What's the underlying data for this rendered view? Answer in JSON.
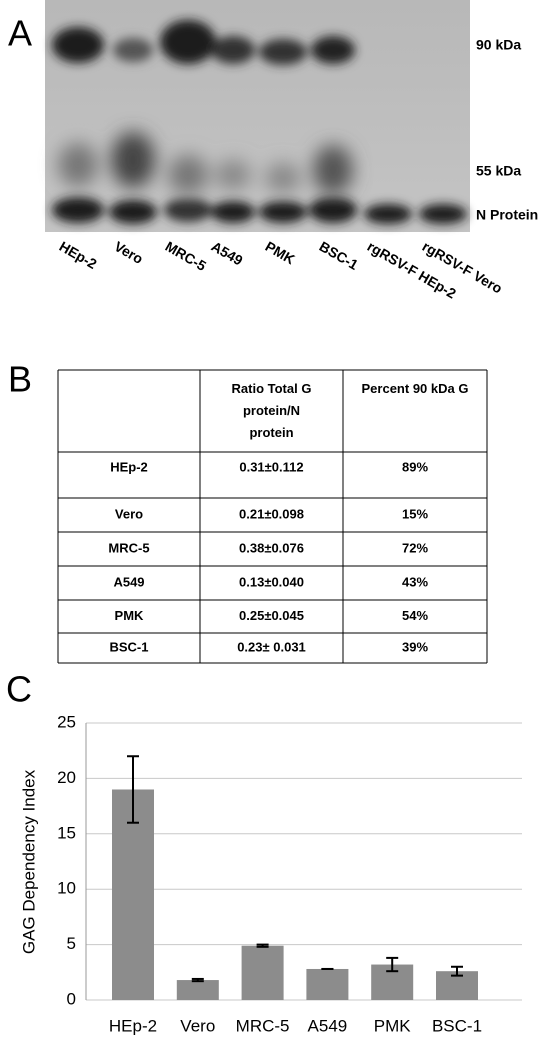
{
  "panel_a": {
    "letter": "A",
    "lanes": [
      "HEp-2",
      "Vero",
      "MRC-5",
      "A549",
      "PMK",
      "BSC-1",
      "rgRSV-F HEp-2",
      "rgRSV-F Vero"
    ],
    "markers": [
      "90 kDa",
      "55 kDa",
      "N Protein"
    ]
  },
  "panel_b": {
    "letter": "B",
    "header": [
      "Ratio Total G protein/N protein",
      "Percent 90 kDa G"
    ],
    "rows": [
      [
        "HEp-2",
        "0.31±0.112",
        "89%"
      ],
      [
        "Vero",
        "0.21±0.098",
        "15%"
      ],
      [
        "MRC-5",
        "0.38±0.076",
        "72%"
      ],
      [
        "A549",
        "0.13±0.040",
        "43%"
      ],
      [
        "PMK",
        "0.25±0.045",
        "54%"
      ],
      [
        "BSC-1",
        "0.23± 0.031",
        "39%"
      ]
    ]
  },
  "chart_data": {
    "type": "bar",
    "letter": "C",
    "ylabel": "GAG Dependency Index",
    "categories": [
      "HEp-2",
      "Vero",
      "MRC-5",
      "A549",
      "PMK",
      "BSC-1"
    ],
    "values": [
      19,
      1.8,
      4.9,
      2.8,
      3.2,
      2.6
    ],
    "errors": [
      3,
      0.1,
      0.1,
      0,
      0.6,
      0.4
    ],
    "color": "#8c8c8c",
    "ylim": [
      0,
      25
    ],
    "yticks": [
      0,
      5,
      10,
      15,
      20,
      25
    ],
    "grid": true
  }
}
